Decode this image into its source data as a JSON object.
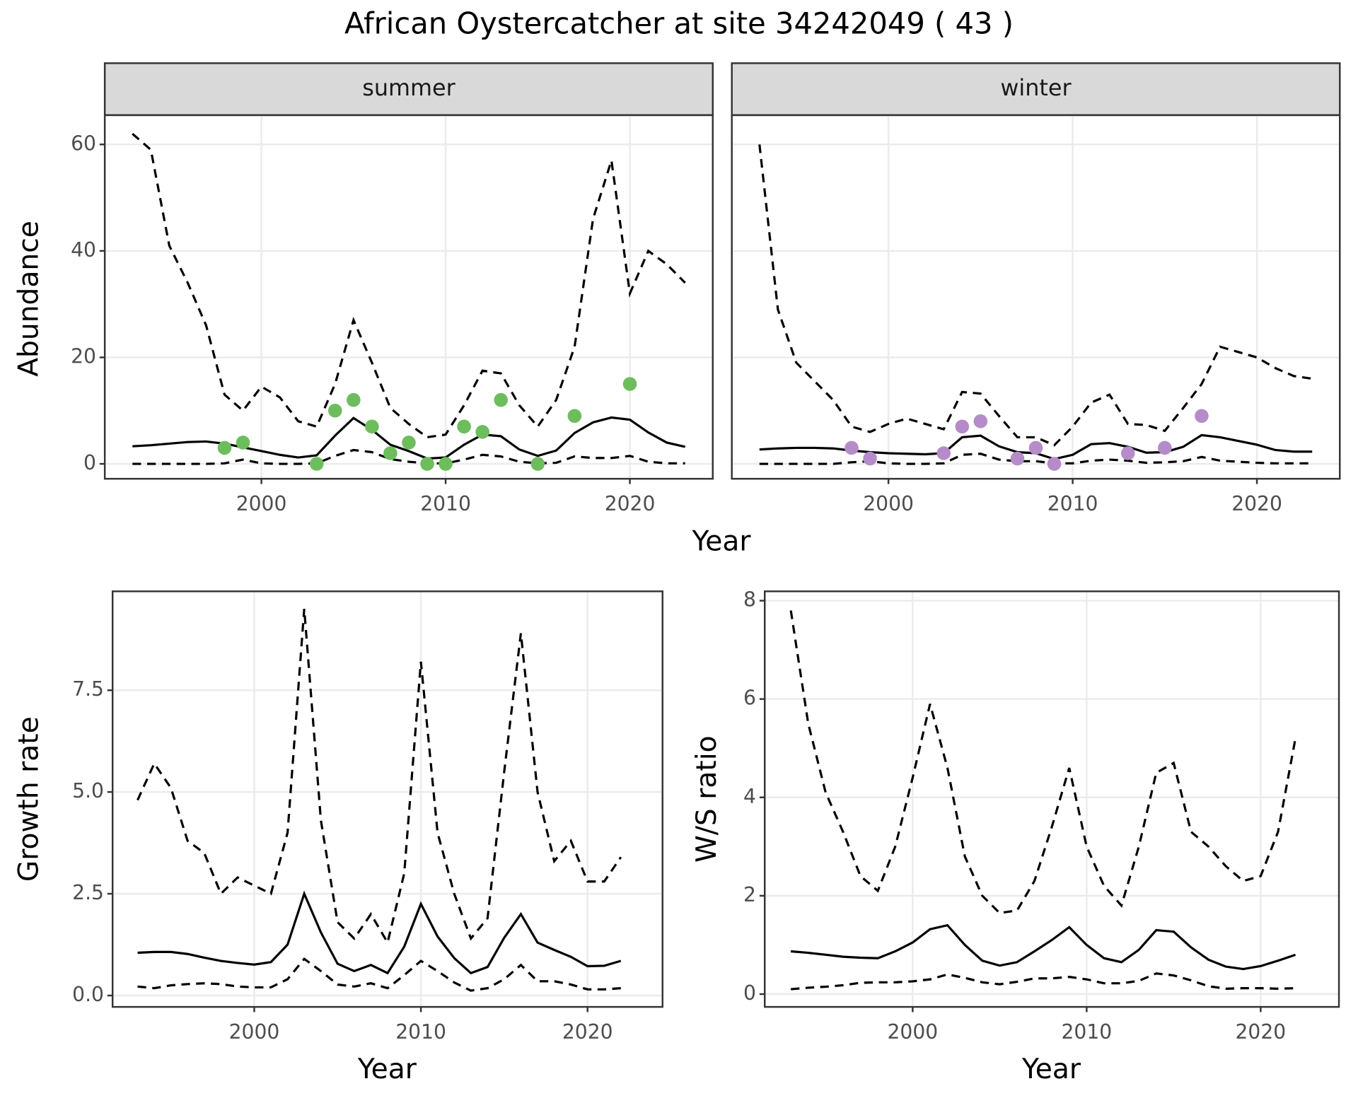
{
  "title": "African Oystercatcher at site 34242049 ( 43 )",
  "chart_data": [
    {
      "type": "line",
      "facet": "summer",
      "x_label": "Year",
      "y_label": "Abundance",
      "xlim": [
        1991.5,
        2024.5
      ],
      "xticks": [
        2000,
        2010,
        2020
      ],
      "ylim": [
        -2.8,
        65.5
      ],
      "yticks": [
        0,
        20,
        40,
        60
      ],
      "grid": true,
      "x": [
        1993,
        1994,
        1995,
        1996,
        1997,
        1998,
        1999,
        2000,
        2001,
        2002,
        2003,
        2004,
        2005,
        2006,
        2007,
        2008,
        2009,
        2010,
        2011,
        2012,
        2013,
        2014,
        2015,
        2016,
        2017,
        2018,
        2019,
        2020,
        2021,
        2022,
        2023
      ],
      "series": [
        {
          "color": "#000000",
          "dash": false,
          "values": [
            3.3,
            3.5,
            3.8,
            4.1,
            4.2,
            3.8,
            3.1,
            2.4,
            1.7,
            1.2,
            1.6,
            5.3,
            8.6,
            6.4,
            3.6,
            2.4,
            1.0,
            1.2,
            3.6,
            5.5,
            5.2,
            2.7,
            1.5,
            2.5,
            5.8,
            7.8,
            8.7,
            8.3,
            5.9,
            4.0,
            3.2
          ]
        },
        {
          "color": "#000000",
          "dash": true,
          "values": [
            0,
            0,
            0,
            0,
            0,
            0.1,
            0.8,
            0.1,
            0,
            0,
            0.1,
            1.5,
            2.6,
            2.2,
            0.9,
            0.4,
            0.1,
            0.1,
            0.8,
            1.7,
            1.4,
            0.4,
            0.1,
            0.2,
            1.4,
            1.1,
            1.1,
            1.5,
            0.4,
            0.1,
            0.1
          ]
        },
        {
          "color": "#000000",
          "dash": true,
          "values": [
            62,
            59,
            41,
            34,
            26,
            13,
            10,
            14.5,
            12.5,
            8,
            7,
            15,
            27,
            19,
            10.5,
            7.5,
            5,
            5.5,
            11,
            17.5,
            17,
            11,
            7,
            12,
            22,
            46,
            57,
            32,
            40,
            37.5,
            34
          ]
        },
        {
          "type": "scatter",
          "color": "#6dbd5d",
          "x": [
            1998,
            1999,
            2003,
            2004,
            2005,
            2006,
            2007,
            2008,
            2009,
            2010,
            2011,
            2012,
            2013,
            2015,
            2017,
            2020
          ],
          "values": [
            3,
            4,
            0,
            10,
            12,
            7,
            2,
            4,
            0,
            0,
            7,
            6,
            12,
            0,
            9,
            15
          ]
        }
      ]
    },
    {
      "type": "line",
      "facet": "winter",
      "xlim": [
        1991.5,
        2024.5
      ],
      "xticks": [
        2000,
        2010,
        2020
      ],
      "x": [
        1993,
        1994,
        1995,
        1996,
        1997,
        1998,
        1999,
        2000,
        2001,
        2002,
        2003,
        2004,
        2005,
        2006,
        2007,
        2008,
        2009,
        2010,
        2011,
        2012,
        2013,
        2014,
        2015,
        2016,
        2017,
        2018,
        2019,
        2020,
        2021,
        2022,
        2023
      ],
      "series": [
        {
          "color": "#000000",
          "dash": false,
          "values": [
            2.7,
            2.9,
            3.0,
            3.0,
            2.9,
            2.5,
            2.2,
            2.0,
            1.9,
            1.8,
            2.0,
            5.0,
            5.3,
            3.3,
            2.2,
            2.0,
            0.9,
            1.7,
            3.7,
            3.9,
            3.2,
            2.1,
            2.2,
            3.2,
            5.4,
            5.0,
            4.3,
            3.6,
            2.6,
            2.3,
            2.3
          ]
        },
        {
          "color": "#000000",
          "dash": true,
          "values": [
            0,
            0,
            0,
            0,
            0,
            0.3,
            0.5,
            0.1,
            0,
            0,
            0.1,
            1.7,
            1.9,
            0.8,
            0.5,
            0.5,
            0.1,
            0.1,
            0.6,
            0.8,
            0.6,
            0.2,
            0.3,
            0.5,
            1.3,
            0.6,
            0.4,
            0.2,
            0.1,
            0.1,
            0.1
          ]
        },
        {
          "color": "#000000",
          "dash": true,
          "values": [
            60,
            29,
            19,
            15.5,
            12,
            7,
            6,
            7.5,
            8.5,
            7.5,
            6.5,
            13.5,
            13.2,
            9,
            5,
            5,
            3.5,
            7,
            11.5,
            13,
            7.5,
            7.3,
            6.2,
            10.5,
            15,
            22,
            21,
            20,
            18,
            16.5,
            16
          ]
        },
        {
          "type": "scatter",
          "color": "#b58cc9",
          "x": [
            1998,
            1999,
            2003,
            2004,
            2005,
            2007,
            2008,
            2009,
            2013,
            2015,
            2017
          ],
          "values": [
            3,
            1,
            2,
            7,
            8,
            1,
            3,
            0,
            2,
            3,
            9
          ]
        }
      ]
    },
    {
      "type": "line",
      "x_label": "Year",
      "y_label": "Growth rate",
      "xlim": [
        1991.5,
        2024.5
      ],
      "xticks": [
        2000,
        2010,
        2020
      ],
      "ylim": [
        -0.28,
        9.93
      ],
      "yticks": [
        {
          "value": 0,
          "label": "0.0"
        },
        2.5,
        {
          "value": 5,
          "label": "5.0"
        },
        7.5
      ],
      "grid": true,
      "x": [
        1993,
        1994,
        1995,
        1996,
        1997,
        1998,
        1999,
        2000,
        2001,
        2002,
        2003,
        2004,
        2005,
        2006,
        2007,
        2008,
        2009,
        2010,
        2011,
        2012,
        2013,
        2014,
        2015,
        2016,
        2017,
        2018,
        2019,
        2020,
        2021,
        2022
      ],
      "series": [
        {
          "color": "#000000",
          "dash": false,
          "values": [
            1.05,
            1.07,
            1.07,
            1.02,
            0.93,
            0.85,
            0.8,
            0.76,
            0.82,
            1.25,
            2.5,
            1.55,
            0.78,
            0.6,
            0.75,
            0.55,
            1.2,
            2.25,
            1.45,
            0.92,
            0.55,
            0.7,
            1.42,
            2.0,
            1.3,
            1.12,
            0.95,
            0.72,
            0.73,
            0.85
          ]
        },
        {
          "color": "#000000",
          "dash": true,
          "values": [
            0.22,
            0.18,
            0.25,
            0.28,
            0.3,
            0.28,
            0.22,
            0.2,
            0.2,
            0.4,
            0.9,
            0.6,
            0.27,
            0.22,
            0.3,
            0.18,
            0.5,
            0.85,
            0.6,
            0.32,
            0.12,
            0.18,
            0.4,
            0.75,
            0.35,
            0.35,
            0.27,
            0.15,
            0.15,
            0.18
          ]
        },
        {
          "color": "#000000",
          "dash": true,
          "values": [
            4.8,
            5.7,
            5.1,
            3.8,
            3.5,
            2.5,
            2.9,
            2.7,
            2.5,
            4.0,
            9.5,
            4.3,
            1.8,
            1.4,
            2.0,
            1.3,
            3.0,
            8.2,
            4.0,
            2.5,
            1.4,
            1.9,
            5.5,
            8.9,
            5.0,
            3.3,
            3.8,
            2.8,
            2.8,
            3.4
          ]
        }
      ]
    },
    {
      "type": "line",
      "x_label": "Year",
      "y_label": "W/S ratio",
      "xlim": [
        1991.5,
        2024.5
      ],
      "xticks": [
        2000,
        2010,
        2020
      ],
      "ylim": [
        -0.26,
        8.19
      ],
      "yticks": [
        0,
        2,
        4,
        6,
        8
      ],
      "grid": true,
      "x": [
        1993,
        1994,
        1995,
        1996,
        1997,
        1998,
        1999,
        2000,
        2001,
        2002,
        2003,
        2004,
        2005,
        2006,
        2007,
        2008,
        2009,
        2010,
        2011,
        2012,
        2013,
        2014,
        2015,
        2016,
        2017,
        2018,
        2019,
        2020,
        2021,
        2022
      ],
      "series": [
        {
          "color": "#000000",
          "dash": false,
          "values": [
            0.87,
            0.84,
            0.8,
            0.76,
            0.74,
            0.73,
            0.87,
            1.05,
            1.32,
            1.4,
            1.0,
            0.68,
            0.58,
            0.65,
            0.87,
            1.1,
            1.36,
            1.0,
            0.73,
            0.65,
            0.9,
            1.3,
            1.27,
            0.95,
            0.7,
            0.56,
            0.51,
            0.57,
            0.68,
            0.8
          ]
        },
        {
          "color": "#000000",
          "dash": true,
          "values": [
            0.1,
            0.13,
            0.15,
            0.18,
            0.23,
            0.24,
            0.24,
            0.26,
            0.3,
            0.4,
            0.33,
            0.24,
            0.2,
            0.25,
            0.32,
            0.32,
            0.35,
            0.3,
            0.22,
            0.22,
            0.27,
            0.42,
            0.38,
            0.28,
            0.16,
            0.11,
            0.12,
            0.12,
            0.11,
            0.12
          ]
        },
        {
          "color": "#000000",
          "dash": true,
          "values": [
            7.8,
            5.5,
            4.1,
            3.3,
            2.4,
            2.1,
            3.0,
            4.4,
            5.9,
            4.6,
            2.8,
            2.0,
            1.65,
            1.7,
            2.3,
            3.4,
            4.6,
            3.0,
            2.2,
            1.8,
            3.0,
            4.5,
            4.7,
            3.3,
            3.0,
            2.6,
            2.3,
            2.4,
            3.3,
            5.2
          ]
        }
      ]
    }
  ]
}
